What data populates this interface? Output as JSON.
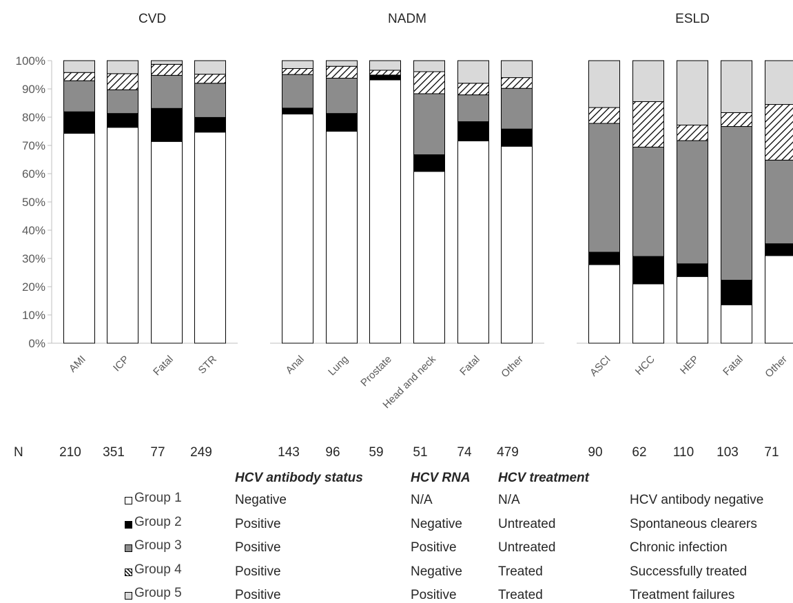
{
  "chart_data": {
    "type": "bar",
    "stacked": true,
    "percent_stacked": true,
    "y_axis": {
      "ylim": [
        0,
        100
      ],
      "ticks": [
        "0%",
        "10%",
        "20%",
        "30%",
        "40%",
        "50%",
        "60%",
        "70%",
        "80%",
        "90%",
        "100%"
      ],
      "grid": false
    },
    "n_label": "N",
    "groups": [
      {
        "name": "CVD",
        "categories": [
          "AMI",
          "ICP",
          "Fatal",
          "STR"
        ],
        "n": [
          "210",
          "351",
          "77",
          "249"
        ],
        "series": [
          {
            "name": "Group 1",
            "values": [
              74.3,
              76.4,
              71.4,
              74.7
            ]
          },
          {
            "name": "Group 2",
            "values": [
              7.6,
              4.9,
              11.7,
              5.2
            ]
          },
          {
            "name": "Group 3",
            "values": [
              11.0,
              8.4,
              11.7,
              12.1
            ]
          },
          {
            "name": "Group 4",
            "values": [
              2.9,
              5.7,
              3.9,
              3.2
            ]
          },
          {
            "name": "Group 5",
            "values": [
              4.2,
              4.6,
              1.3,
              4.8
            ]
          }
        ]
      },
      {
        "name": "NADM",
        "categories": [
          "Anal",
          "Lung",
          "Prostate",
          "Head and neck",
          "Fatal",
          "Other"
        ],
        "n": [
          "143",
          "96",
          "59",
          "51",
          "74",
          "479"
        ],
        "series": [
          {
            "name": "Group 1",
            "values": [
              81.1,
              75.0,
              93.2,
              60.8,
              71.6,
              69.7
            ]
          },
          {
            "name": "Group 2",
            "values": [
              2.1,
              6.3,
              1.7,
              5.9,
              6.8,
              6.1
            ]
          },
          {
            "name": "Group 3",
            "values": [
              11.9,
              12.5,
              0,
              21.6,
              9.5,
              14.4
            ]
          },
          {
            "name": "Group 4",
            "values": [
              2.1,
              4.2,
              1.7,
              7.8,
              4.1,
              3.8
            ]
          },
          {
            "name": "Group 5",
            "values": [
              2.8,
              2.0,
              3.4,
              3.9,
              8.0,
              6.0
            ]
          }
        ]
      },
      {
        "name": "ESLD",
        "categories": [
          "ASCI",
          "HCC",
          "HEP",
          "Fatal",
          "Other"
        ],
        "n": [
          "90",
          "62",
          "110",
          "103",
          "71"
        ],
        "series": [
          {
            "name": "Group 1",
            "values": [
              27.8,
              21.0,
              23.6,
              13.6,
              31.0
            ]
          },
          {
            "name": "Group 2",
            "values": [
              4.4,
              9.7,
              4.5,
              8.7,
              4.2
            ]
          },
          {
            "name": "Group 3",
            "values": [
              45.6,
              38.7,
              43.6,
              54.4,
              29.6
            ]
          },
          {
            "name": "Group 4",
            "values": [
              5.6,
              16.1,
              5.5,
              4.9,
              19.7
            ]
          },
          {
            "name": "Group 5",
            "values": [
              16.6,
              14.5,
              22.8,
              18.4,
              15.5
            ]
          }
        ]
      }
    ]
  },
  "legend": {
    "headers": {
      "antibody": "HCV antibody status",
      "rna": "HCV RNA",
      "treatment": "HCV treatment"
    },
    "rows": [
      {
        "group": "Group 1",
        "antibody": "Negative",
        "rna": "N/A",
        "treatment": "N/A",
        "description": "HCV antibody negative",
        "fill": "#ffffff",
        "pattern": "solid"
      },
      {
        "group": "Group 2",
        "antibody": "Positive",
        "rna": "Negative",
        "treatment": "Untreated",
        "description": "Spontaneous clearers",
        "fill": "#000000",
        "pattern": "solid"
      },
      {
        "group": "Group 3",
        "antibody": "Positive",
        "rna": "Positive",
        "treatment": "Untreated",
        "description": "Chronic infection",
        "fill": "#8c8c8c",
        "pattern": "solid"
      },
      {
        "group": "Group 4",
        "antibody": "Positive",
        "rna": "Negative",
        "treatment": "Treated",
        "description": "Successfully treated",
        "fill": "#ffffff",
        "pattern": "diagonal-hatch"
      },
      {
        "group": "Group 5",
        "antibody": "Positive",
        "rna": "Positive",
        "treatment": "Treated",
        "description": "Treatment failures",
        "fill": "#d9d9d9",
        "pattern": "solid"
      }
    ]
  }
}
